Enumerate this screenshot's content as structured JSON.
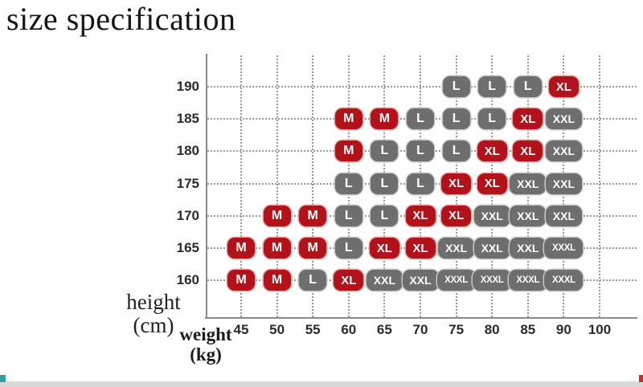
{
  "page": {
    "title": "size specification"
  },
  "axis_labels": {
    "y_label_line1": "height",
    "y_label_line2": "(cm)",
    "x_label_line1": "weight",
    "x_label_line2": "(kg)"
  },
  "colors": {
    "badge_red": "#b2121a",
    "badge_red_outline": "#e2a6a6",
    "badge_gray": "#6e6e6e",
    "badge_gray_outline": "#c6c6c6",
    "badge_text": "#ffffff",
    "axis_line": "#8a8a8a",
    "grid_dots": "#8e8e8e",
    "tick_text": "#2b2b2b",
    "bottom_strip": "#d9d9d9",
    "corner_teal": "#2fa39a",
    "corner_red": "#cc2a2a"
  },
  "chart_data": {
    "type": "scatter",
    "title": "size specification",
    "xlabel": "weight (kg)",
    "ylabel": "height (cm)",
    "x_ticks": [
      "45",
      "50",
      "55",
      "60",
      "65",
      "70",
      "75",
      "80",
      "85",
      "90",
      "100"
    ],
    "y_ticks": [
      "190",
      "185",
      "180",
      "175",
      "170",
      "165",
      "160"
    ],
    "grid": true,
    "legend": null,
    "points": [
      {
        "height": "190",
        "weight": "75",
        "size": "L",
        "color": "gray"
      },
      {
        "height": "190",
        "weight": "80",
        "size": "L",
        "color": "gray"
      },
      {
        "height": "190",
        "weight": "85",
        "size": "L",
        "color": "gray"
      },
      {
        "height": "190",
        "weight": "90",
        "size": "XL",
        "color": "red"
      },
      {
        "height": "185",
        "weight": "60",
        "size": "M",
        "color": "red"
      },
      {
        "height": "185",
        "weight": "65",
        "size": "M",
        "color": "red"
      },
      {
        "height": "185",
        "weight": "70",
        "size": "L",
        "color": "gray"
      },
      {
        "height": "185",
        "weight": "75",
        "size": "L",
        "color": "gray"
      },
      {
        "height": "185",
        "weight": "80",
        "size": "L",
        "color": "gray"
      },
      {
        "height": "185",
        "weight": "85",
        "size": "XL",
        "color": "red"
      },
      {
        "height": "185",
        "weight": "90",
        "size": "XXL",
        "color": "gray"
      },
      {
        "height": "180",
        "weight": "60",
        "size": "M",
        "color": "red"
      },
      {
        "height": "180",
        "weight": "65",
        "size": "L",
        "color": "gray"
      },
      {
        "height": "180",
        "weight": "70",
        "size": "L",
        "color": "gray"
      },
      {
        "height": "180",
        "weight": "75",
        "size": "L",
        "color": "gray"
      },
      {
        "height": "180",
        "weight": "80",
        "size": "XL",
        "color": "red"
      },
      {
        "height": "180",
        "weight": "85",
        "size": "XL",
        "color": "red"
      },
      {
        "height": "180",
        "weight": "90",
        "size": "XXL",
        "color": "gray"
      },
      {
        "height": "175",
        "weight": "60",
        "size": "L",
        "color": "gray"
      },
      {
        "height": "175",
        "weight": "65",
        "size": "L",
        "color": "gray"
      },
      {
        "height": "175",
        "weight": "70",
        "size": "L",
        "color": "gray"
      },
      {
        "height": "175",
        "weight": "75",
        "size": "XL",
        "color": "red"
      },
      {
        "height": "175",
        "weight": "80",
        "size": "XL",
        "color": "red"
      },
      {
        "height": "175",
        "weight": "85",
        "size": "XXL",
        "color": "gray"
      },
      {
        "height": "175",
        "weight": "90",
        "size": "XXL",
        "color": "gray"
      },
      {
        "height": "170",
        "weight": "50",
        "size": "M",
        "color": "red"
      },
      {
        "height": "170",
        "weight": "55",
        "size": "M",
        "color": "red"
      },
      {
        "height": "170",
        "weight": "60",
        "size": "L",
        "color": "gray"
      },
      {
        "height": "170",
        "weight": "65",
        "size": "L",
        "color": "gray"
      },
      {
        "height": "170",
        "weight": "70",
        "size": "XL",
        "color": "red"
      },
      {
        "height": "170",
        "weight": "75",
        "size": "XL",
        "color": "red"
      },
      {
        "height": "170",
        "weight": "80",
        "size": "XXL",
        "color": "gray"
      },
      {
        "height": "170",
        "weight": "85",
        "size": "XXL",
        "color": "gray"
      },
      {
        "height": "170",
        "weight": "90",
        "size": "XXL",
        "color": "gray"
      },
      {
        "height": "165",
        "weight": "45",
        "size": "M",
        "color": "red"
      },
      {
        "height": "165",
        "weight": "50",
        "size": "M",
        "color": "red"
      },
      {
        "height": "165",
        "weight": "55",
        "size": "M",
        "color": "red"
      },
      {
        "height": "165",
        "weight": "60",
        "size": "L",
        "color": "gray"
      },
      {
        "height": "165",
        "weight": "65",
        "size": "XL",
        "color": "red"
      },
      {
        "height": "165",
        "weight": "70",
        "size": "XL",
        "color": "red"
      },
      {
        "height": "165",
        "weight": "75",
        "size": "XXL",
        "color": "gray"
      },
      {
        "height": "165",
        "weight": "80",
        "size": "XXL",
        "color": "gray"
      },
      {
        "height": "165",
        "weight": "85",
        "size": "XXL",
        "color": "gray"
      },
      {
        "height": "165",
        "weight": "90",
        "size": "XXXL",
        "color": "gray"
      },
      {
        "height": "160",
        "weight": "45",
        "size": "M",
        "color": "red"
      },
      {
        "height": "160",
        "weight": "50",
        "size": "M",
        "color": "red"
      },
      {
        "height": "160",
        "weight": "55",
        "size": "L",
        "color": "gray"
      },
      {
        "height": "160",
        "weight": "60",
        "size": "XL",
        "color": "red"
      },
      {
        "height": "160",
        "weight": "65",
        "size": "XXL",
        "color": "gray"
      },
      {
        "height": "160",
        "weight": "70",
        "size": "XXL",
        "color": "gray"
      },
      {
        "height": "160",
        "weight": "75",
        "size": "XXXL",
        "color": "gray"
      },
      {
        "height": "160",
        "weight": "80",
        "size": "XXXL",
        "color": "gray"
      },
      {
        "height": "160",
        "weight": "85",
        "size": "XXXL",
        "color": "gray"
      },
      {
        "height": "160",
        "weight": "90",
        "size": "XXXL",
        "color": "gray"
      }
    ]
  }
}
